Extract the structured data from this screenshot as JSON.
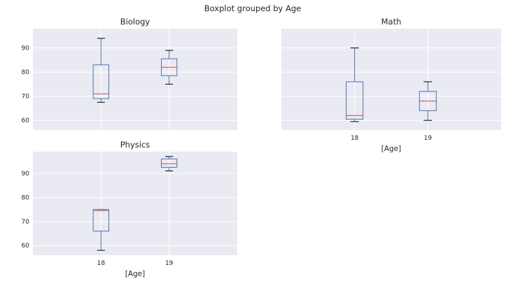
{
  "figure_title": "Boxplot grouped by Age",
  "chart_data": [
    {
      "type": "box",
      "title": "Biology",
      "categories": [
        "18",
        "19"
      ],
      "boxes": [
        {
          "min": 67.5,
          "q1": 69,
          "median": 71,
          "q3": 83,
          "max": 94
        },
        {
          "min": 75,
          "q1": 78.5,
          "median": 82,
          "q3": 85.5,
          "max": 89
        }
      ],
      "ylim": [
        56,
        98
      ],
      "yticks": [
        60,
        70,
        80,
        90
      ],
      "show_xticklabels": false,
      "show_yticklabels": true,
      "xlabel": "",
      "grid": true
    },
    {
      "type": "box",
      "title": "Math",
      "categories": [
        "18",
        "19"
      ],
      "boxes": [
        {
          "min": 59.5,
          "q1": 60.5,
          "median": 62,
          "q3": 76,
          "max": 90
        },
        {
          "min": 60,
          "q1": 64,
          "median": 68,
          "q3": 72,
          "max": 76
        }
      ],
      "ylim": [
        56,
        98
      ],
      "yticks": [
        60,
        70,
        80,
        90
      ],
      "show_xticklabels": true,
      "show_yticklabels": false,
      "xlabel": "[Age]",
      "grid": true
    },
    {
      "type": "box",
      "title": "Physics",
      "categories": [
        "18",
        "19"
      ],
      "boxes": [
        {
          "min": 58,
          "q1": 66,
          "median": 74.5,
          "q3": 75,
          "max": 75
        },
        {
          "min": 91,
          "q1": 92.5,
          "median": 94,
          "q3": 96,
          "max": 97
        }
      ],
      "ylim": [
        56,
        99
      ],
      "yticks": [
        60,
        70,
        80,
        90
      ],
      "show_xticklabels": true,
      "show_yticklabels": true,
      "xlabel": "[Age]",
      "grid": true
    }
  ],
  "colors": {
    "panel_bg": "#EAEAF2",
    "grid": "#FFFFFF",
    "box": "#4C72B0",
    "median": "#C44E52",
    "whisker_cap": "#000000",
    "text": "#262626"
  }
}
